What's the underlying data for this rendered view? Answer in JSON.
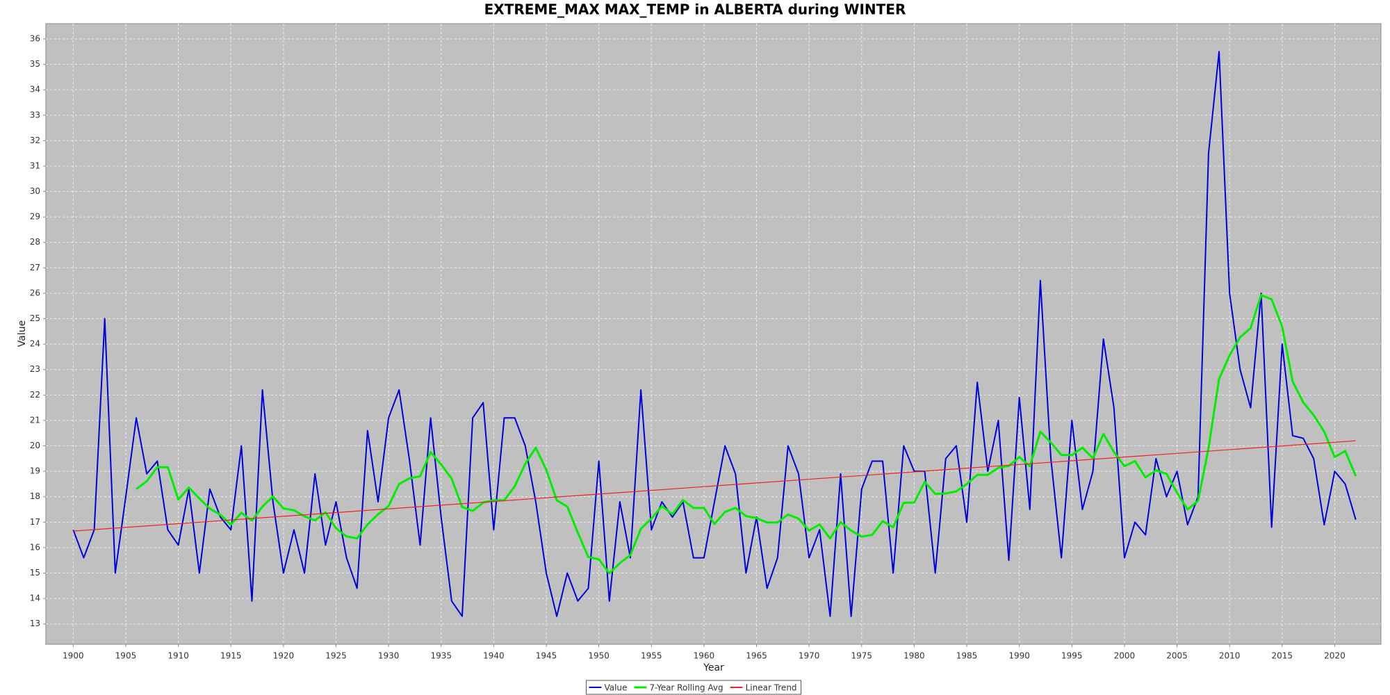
{
  "chart_data": {
    "type": "line",
    "title": "EXTREME_MAX MAX_TEMP in ALBERTA during WINTER",
    "x_label": "Year",
    "y_label": "Value",
    "x": [
      1900,
      1901,
      1902,
      1903,
      1904,
      1905,
      1906,
      1907,
      1908,
      1909,
      1910,
      1911,
      1912,
      1913,
      1914,
      1915,
      1916,
      1917,
      1918,
      1919,
      1920,
      1921,
      1922,
      1923,
      1924,
      1925,
      1926,
      1927,
      1928,
      1929,
      1930,
      1931,
      1932,
      1933,
      1934,
      1935,
      1936,
      1937,
      1938,
      1939,
      1940,
      1941,
      1942,
      1943,
      1944,
      1945,
      1946,
      1947,
      1948,
      1949,
      1950,
      1951,
      1952,
      1953,
      1954,
      1955,
      1956,
      1957,
      1958,
      1959,
      1960,
      1961,
      1962,
      1963,
      1964,
      1965,
      1966,
      1967,
      1968,
      1969,
      1970,
      1971,
      1972,
      1973,
      1974,
      1975,
      1976,
      1977,
      1978,
      1979,
      1980,
      1981,
      1982,
      1983,
      1984,
      1985,
      1986,
      1987,
      1988,
      1989,
      1990,
      1991,
      1992,
      1993,
      1994,
      1995,
      1996,
      1997,
      1998,
      1999,
      2000,
      2001,
      2002,
      2003,
      2004,
      2005,
      2006,
      2007,
      2008,
      2009,
      2010,
      2011,
      2012,
      2013,
      2014,
      2015,
      2016,
      2017,
      2018,
      2019,
      2020,
      2021,
      2022
    ],
    "series": [
      {
        "name": "Value",
        "color": "#0000dd",
        "width": 2,
        "values": [
          16.7,
          15.6,
          16.7,
          25.0,
          15.0,
          18.0,
          21.1,
          18.9,
          19.4,
          16.7,
          16.1,
          18.3,
          15.0,
          18.3,
          17.2,
          16.7,
          20.0,
          13.9,
          22.2,
          17.8,
          15.0,
          16.7,
          15.0,
          18.9,
          16.1,
          17.8,
          15.6,
          14.4,
          20.6,
          17.8,
          21.1,
          22.2,
          19.4,
          16.1,
          21.1,
          17.2,
          13.9,
          13.3,
          21.1,
          21.7,
          16.7,
          21.1,
          21.1,
          20.0,
          17.8,
          15.0,
          13.3,
          15.0,
          13.9,
          14.4,
          19.4,
          13.9,
          17.8,
          15.6,
          22.2,
          16.7,
          17.8,
          17.2,
          17.8,
          15.6,
          15.6,
          17.8,
          20.0,
          18.9,
          15.0,
          17.2,
          14.4,
          15.6,
          20.0,
          18.9,
          15.6,
          16.7,
          13.3,
          18.9,
          13.3,
          18.3,
          19.4,
          19.4,
          15.0,
          20.0,
          19.0,
          19.0,
          15.0,
          19.5,
          20.0,
          17.0,
          22.5,
          19.0,
          21.0,
          15.5,
          21.9,
          17.5,
          26.5,
          19.5,
          15.6,
          21.0,
          17.5,
          19.0,
          24.2,
          21.5,
          15.6,
          17.0,
          16.5,
          19.5,
          18.0,
          19.0,
          16.9,
          18.0,
          31.5,
          35.5,
          26.0,
          23.0,
          21.5,
          26.0,
          16.8,
          24.0,
          20.4,
          20.3,
          19.5,
          16.9,
          19.0,
          18.5,
          17.1
        ]
      },
      {
        "name": "7-Year Rolling Avg",
        "color": "#00ee00",
        "width": 3,
        "values": [
          null,
          null,
          null,
          null,
          null,
          null,
          18.3,
          18.61,
          19.16,
          19.16,
          17.89,
          18.36,
          17.93,
          17.53,
          17.29,
          16.9,
          17.37,
          17.06,
          17.61,
          18.01,
          17.54,
          17.47,
          17.23,
          17.07,
          17.39,
          16.76,
          16.44,
          16.36,
          16.91,
          17.31,
          17.63,
          18.5,
          18.73,
          18.8,
          19.76,
          19.27,
          18.71,
          17.6,
          17.44,
          17.77,
          17.86,
          17.86,
          18.41,
          19.29,
          19.93,
          19.06,
          17.86,
          17.61,
          16.59,
          15.63,
          15.54,
          14.99,
          15.39,
          15.71,
          16.74,
          17.14,
          17.63,
          17.31,
          17.87,
          17.56,
          17.56,
          16.93,
          17.4,
          17.56,
          17.24,
          17.16,
          16.99,
          16.99,
          17.3,
          17.14,
          16.67,
          16.91,
          16.36,
          17.0,
          16.67,
          16.43,
          16.5,
          17.04,
          16.8,
          17.76,
          17.77,
          18.59,
          18.11,
          18.13,
          18.21,
          18.5,
          18.86,
          18.86,
          19.14,
          19.21,
          19.56,
          19.2,
          20.56,
          20.13,
          19.64,
          19.64,
          19.93,
          19.51,
          20.47,
          19.76,
          19.2,
          19.4,
          18.76,
          19.04,
          18.9,
          18.16,
          17.5,
          17.84,
          19.91,
          22.63,
          23.56,
          24.27,
          24.63,
          25.93,
          25.76,
          24.69,
          22.53,
          21.71,
          21.21,
          20.56,
          19.56,
          19.8,
          18.81
        ]
      },
      {
        "name": "Linear Trend",
        "color": "#ee2222",
        "width": 1.2,
        "x": [
          1900,
          2022
        ],
        "values": [
          16.65,
          20.2
        ]
      }
    ],
    "xlim": [
      1897.4,
      2024.4
    ],
    "ylim": [
      12.2,
      36.6
    ],
    "xticks": [
      1900,
      1905,
      1910,
      1915,
      1920,
      1925,
      1930,
      1935,
      1940,
      1945,
      1950,
      1955,
      1960,
      1965,
      1970,
      1975,
      1980,
      1985,
      1990,
      1995,
      2000,
      2005,
      2010,
      2015,
      2020
    ],
    "yticks": [
      13,
      14,
      15,
      16,
      17,
      18,
      19,
      20,
      21,
      22,
      23,
      24,
      25,
      26,
      27,
      28,
      29,
      30,
      31,
      32,
      33,
      34,
      35,
      36
    ],
    "grid": true,
    "legend": "bottom"
  }
}
